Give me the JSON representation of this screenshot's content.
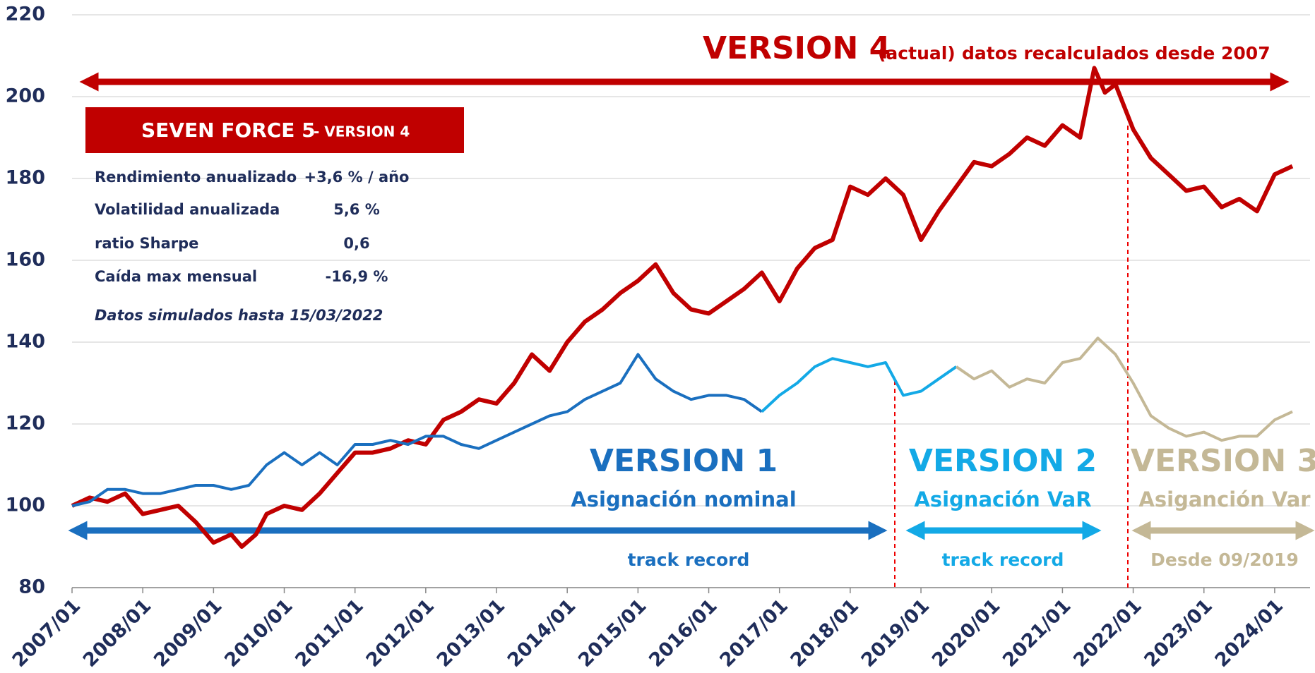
{
  "chart_data": {
    "type": "line",
    "xlim": [
      2007,
      2024.5
    ],
    "xticks": [
      {
        "value": 2007,
        "label": "2007/01"
      },
      {
        "value": 2008,
        "label": "2008/01"
      },
      {
        "value": 2009,
        "label": "2009/01"
      },
      {
        "value": 2010,
        "label": "2010/01"
      },
      {
        "value": 2011,
        "label": "2011/01"
      },
      {
        "value": 2012,
        "label": "2012/01"
      },
      {
        "value": 2013,
        "label": "2013/01"
      },
      {
        "value": 2014,
        "label": "2014/01"
      },
      {
        "value": 2015,
        "label": "2015/01"
      },
      {
        "value": 2016,
        "label": "2016/01"
      },
      {
        "value": 2017,
        "label": "2017/01"
      },
      {
        "value": 2018,
        "label": "2018/01"
      },
      {
        "value": 2019,
        "label": "2019/01"
      },
      {
        "value": 2020,
        "label": "2020/01"
      },
      {
        "value": 2021,
        "label": "2021/01"
      },
      {
        "value": 2022,
        "label": "2022/01"
      },
      {
        "value": 2023,
        "label": "2023/01"
      },
      {
        "value": 2024,
        "label": "2024/01"
      }
    ],
    "ylim": [
      80,
      220
    ],
    "yticks": [
      80,
      100,
      120,
      140,
      160,
      180,
      200,
      220
    ],
    "grid": true,
    "series": [
      {
        "name": "VERSION 4",
        "color": "#c00000",
        "x": [
          2007,
          2007.25,
          2007.5,
          2007.75,
          2008,
          2008.25,
          2008.5,
          2008.75,
          2009,
          2009.25,
          2009.4,
          2009.6,
          2009.75,
          2010,
          2010.25,
          2010.5,
          2010.75,
          2011,
          2011.25,
          2011.5,
          2011.75,
          2012,
          2012.25,
          2012.5,
          2012.75,
          2013,
          2013.25,
          2013.5,
          2013.75,
          2014,
          2014.25,
          2014.5,
          2014.75,
          2015,
          2015.25,
          2015.5,
          2015.75,
          2016,
          2016.25,
          2016.5,
          2016.75,
          2017,
          2017.25,
          2017.5,
          2017.75,
          2018,
          2018.25,
          2018.5,
          2018.75,
          2019,
          2019.25,
          2019.5,
          2019.75,
          2020,
          2020.25,
          2020.5,
          2020.75,
          2021,
          2021.25,
          2021.45,
          2021.6,
          2021.75,
          2022,
          2022.25,
          2022.5,
          2022.75,
          2023,
          2023.25,
          2023.5,
          2023.75,
          2024,
          2024.25
        ],
        "values": [
          100,
          102,
          101,
          103,
          98,
          99,
          100,
          96,
          91,
          93,
          90,
          93,
          98,
          100,
          99,
          103,
          108,
          113,
          113,
          114,
          116,
          115,
          121,
          123,
          126,
          125,
          130,
          137,
          133,
          140,
          145,
          148,
          152,
          155,
          159,
          152,
          148,
          147,
          150,
          153,
          157,
          150,
          158,
          163,
          165,
          178,
          176,
          180,
          176,
          165,
          172,
          178,
          184,
          183,
          186,
          190,
          188,
          193,
          190,
          207,
          201,
          203,
          192,
          185,
          181,
          177,
          178,
          173,
          175,
          172,
          181,
          183
        ]
      },
      {
        "name": "VERSION 1",
        "color": "#1a6fbf",
        "x": [
          2007,
          2007.25,
          2007.5,
          2007.75,
          2008,
          2008.25,
          2008.5,
          2008.75,
          2009,
          2009.25,
          2009.5,
          2009.75,
          2010,
          2010.25,
          2010.5,
          2010.75,
          2011,
          2011.25,
          2011.5,
          2011.75,
          2012,
          2012.25,
          2012.5,
          2012.75,
          2013,
          2013.25,
          2013.5,
          2013.75,
          2014,
          2014.25,
          2014.5,
          2014.75,
          2015,
          2015.25,
          2015.5,
          2015.75,
          2016,
          2016.25,
          2016.5,
          2016.75
        ],
        "values": [
          100,
          101,
          104,
          104,
          103,
          103,
          104,
          105,
          105,
          104,
          105,
          110,
          113,
          110,
          113,
          110,
          115,
          115,
          116,
          115,
          117,
          117,
          115,
          114,
          116,
          118,
          120,
          122,
          123,
          126,
          128,
          130,
          137,
          131,
          128,
          126,
          127,
          127,
          126,
          123
        ]
      },
      {
        "name": "VERSION 2",
        "color": "#13a9e6",
        "x": [
          2016.75,
          2017,
          2017.25,
          2017.5,
          2017.75,
          2018,
          2018.25,
          2018.5,
          2018.75,
          2019,
          2019.25,
          2019.5
        ],
        "values": [
          123,
          127,
          130,
          134,
          136,
          135,
          134,
          135,
          127,
          128,
          131,
          134
        ]
      },
      {
        "name": "VERSION 3",
        "color": "#c4b896",
        "x": [
          2019.5,
          2019.75,
          2020,
          2020.25,
          2020.5,
          2020.75,
          2021,
          2021.25,
          2021.5,
          2021.75,
          2022,
          2022.25,
          2022.5,
          2022.75,
          2023,
          2023.25,
          2023.5,
          2023.75,
          2024,
          2024.25
        ],
        "values": [
          134,
          131,
          133,
          129,
          131,
          130,
          135,
          136,
          141,
          137,
          130,
          122,
          119,
          117,
          118,
          116,
          117,
          117,
          121,
          123
        ]
      }
    ],
    "annotations": {
      "actual": "(actual)",
      "recalc": "datos recalculados desde 2007",
      "v1_sub": "Asignación nominal",
      "v1_note": "track record",
      "v2_sub": "Asignación  VaR",
      "v2_note": "track record",
      "v3_sub": "Asiganción Var",
      "v3_note": "Desde 09/2019"
    },
    "box": {
      "title": "SEVEN FORCE 5",
      "subtitle": "- VERSION 4",
      "rows": [
        [
          "Rendimiento anualizado",
          "+3,6 % / año"
        ],
        [
          "Volatilidad anualizada",
          "5,6 %"
        ],
        [
          "ratio Sharpe",
          "0,6"
        ],
        [
          "Caída max  mensual",
          "-16,9 %"
        ]
      ],
      "note": "Datos simulados hasta 15/03/2022"
    }
  }
}
